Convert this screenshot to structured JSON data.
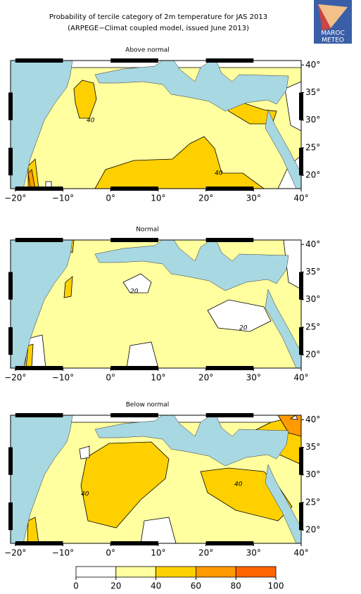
{
  "title": "Probability of tercile category of 2m temperature for JAS 2013",
  "subtitle": "(ARPEGE−Climat coupled model, issued June 2013)",
  "logo": {
    "line1": "MAROC",
    "line2": "METEO"
  },
  "map": {
    "xlim": [
      -21,
      40
    ],
    "ylim": [
      17.6,
      40.8
    ],
    "lon_ticks": [
      {
        "value": -20,
        "label": "−20°"
      },
      {
        "value": -10,
        "label": "−10°"
      },
      {
        "value": 0,
        "label": "0°"
      },
      {
        "value": 10,
        "label": "10°"
      },
      {
        "value": 20,
        "label": "20°"
      },
      {
        "value": 30,
        "label": "30°"
      },
      {
        "value": 40,
        "label": "40°"
      }
    ],
    "lat_ticks": [
      {
        "value": 20,
        "label": "20°"
      },
      {
        "value": 25,
        "label": "25°"
      },
      {
        "value": 30,
        "label": "30°"
      },
      {
        "value": 35,
        "label": "35°"
      },
      {
        "value": 40,
        "label": "40°"
      }
    ]
  },
  "panels": [
    {
      "title": "Above normal",
      "contour_labels": [
        "40",
        "40"
      ]
    },
    {
      "title": "Normal",
      "contour_labels": [
        "20",
        "20"
      ]
    },
    {
      "title": "Below normal",
      "contour_labels": [
        "40",
        "40"
      ]
    }
  ],
  "colorbar": {
    "bounds": [
      0,
      20,
      40,
      60,
      80,
      100
    ],
    "colors": [
      "#ffffff",
      "#ffffa0",
      "#ffd000",
      "#ff9a00",
      "#ff6400"
    ]
  }
}
